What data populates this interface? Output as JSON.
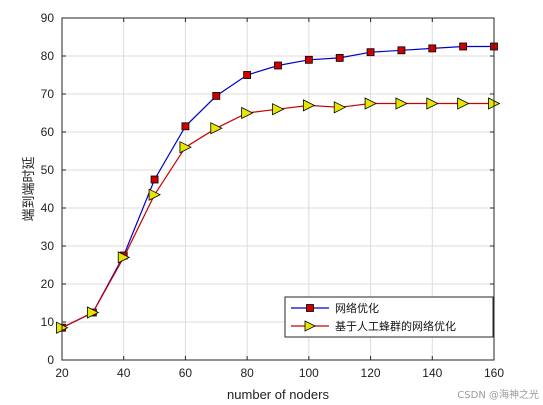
{
  "chart_data": {
    "type": "line",
    "title": "",
    "xlabel": "number of noders",
    "ylabel": "端到端时延",
    "xlim": [
      20,
      160
    ],
    "ylim": [
      0,
      90
    ],
    "xticks": [
      20,
      40,
      60,
      80,
      100,
      120,
      140,
      160
    ],
    "yticks": [
      0,
      10,
      20,
      30,
      40,
      50,
      60,
      70,
      80,
      90
    ],
    "grid": true,
    "legend_position": "bottom-right",
    "x": [
      20,
      30,
      40,
      50,
      60,
      70,
      80,
      90,
      100,
      110,
      120,
      130,
      140,
      150,
      160
    ],
    "series": [
      {
        "name": "网络优化",
        "color": "#0000cc",
        "marker": "square",
        "marker_color": "#cc0000",
        "values": [
          8.5,
          12.5,
          27.5,
          47.5,
          61.5,
          69.5,
          75,
          77.5,
          79,
          79.5,
          81,
          81.5,
          82,
          82.5,
          82.5
        ]
      },
      {
        "name": "基于人工蜂群的网络优化",
        "color": "#cc0000",
        "marker": "triangle-right",
        "marker_color": "#e6e600",
        "values": [
          8.5,
          12.5,
          27,
          43.5,
          56,
          61,
          65,
          66,
          67,
          66.5,
          67.5,
          67.5,
          67.5,
          67.5,
          67.5
        ]
      }
    ]
  },
  "watermark": "CSDN @海神之光"
}
